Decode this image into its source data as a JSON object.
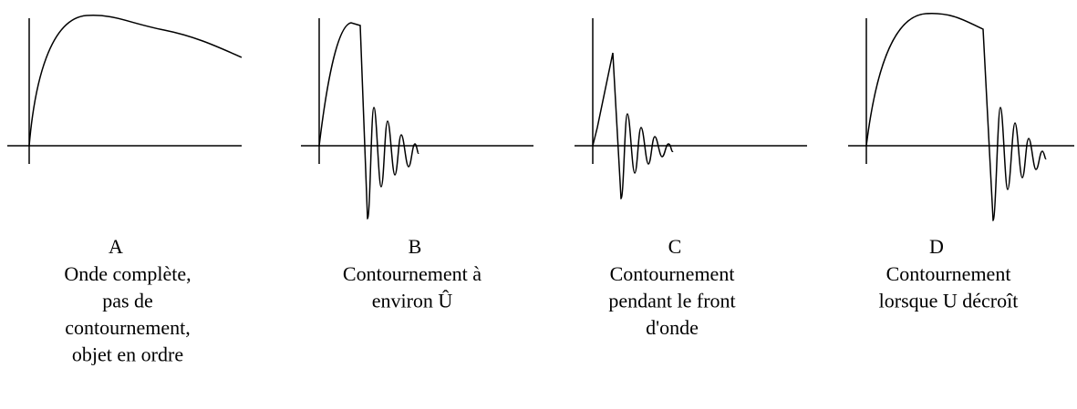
{
  "panels": [
    {
      "label": "A",
      "caption": [
        "Onde complète,",
        "pas de",
        "contournement,",
        "objet en ordre"
      ]
    },
    {
      "label": "B",
      "caption": [
        "Contournement à",
        "environ Û"
      ]
    },
    {
      "label": "C",
      "caption": [
        "Contournement",
        "pendant le front",
        "d'onde"
      ]
    },
    {
      "label": "D",
      "caption": [
        "Contournement",
        "lorsque U décroît"
      ]
    }
  ]
}
